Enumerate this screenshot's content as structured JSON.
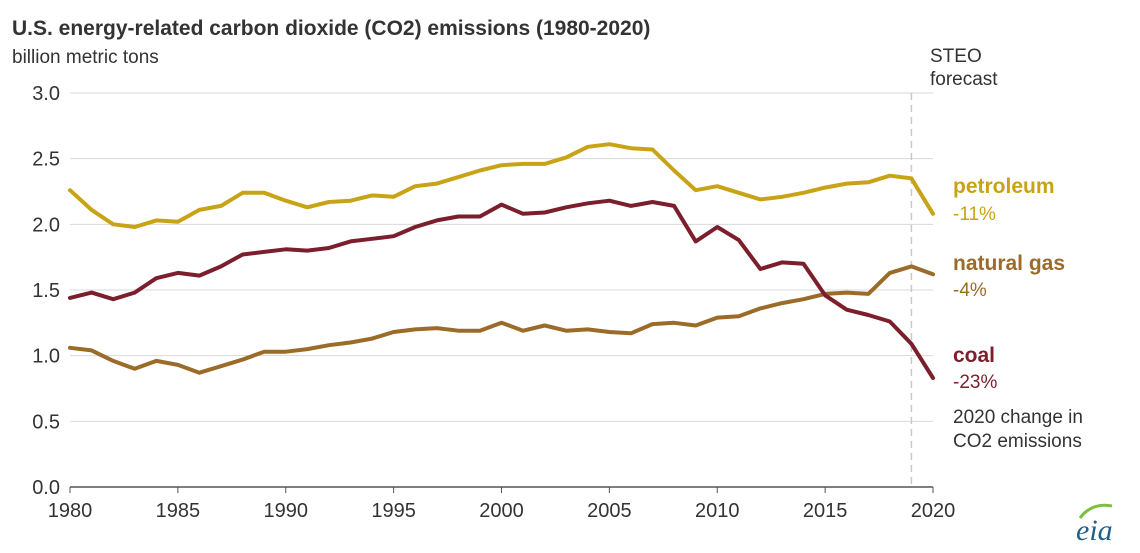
{
  "chart_data": {
    "type": "line",
    "title": "U.S. energy-related carbon dioxide (CO2) emissions (1980-2020)",
    "ylabel": "billion metric tons",
    "xlabel": "",
    "xlim": [
      1980,
      2020
    ],
    "ylim": [
      0,
      3.0
    ],
    "x_ticks": [
      "1980",
      "1985",
      "1990",
      "1995",
      "2000",
      "2005",
      "2010",
      "2015",
      "2020"
    ],
    "y_ticks": [
      "0.0",
      "0.5",
      "1.0",
      "1.5",
      "2.0",
      "2.5",
      "3.0"
    ],
    "grid": "horizontal",
    "forecast_marker": {
      "x": 2019,
      "label_line1": "STEO",
      "label_line2": "forecast"
    },
    "legend_note": {
      "line1": "2020 change in",
      "line2": "CO2 emissions"
    },
    "x": [
      1980,
      1981,
      1982,
      1983,
      1984,
      1985,
      1986,
      1987,
      1988,
      1989,
      1990,
      1991,
      1992,
      1993,
      1994,
      1995,
      1996,
      1997,
      1998,
      1999,
      2000,
      2001,
      2002,
      2003,
      2004,
      2005,
      2006,
      2007,
      2008,
      2009,
      2010,
      2011,
      2012,
      2013,
      2014,
      2015,
      2016,
      2017,
      2018,
      2019,
      2020
    ],
    "series": [
      {
        "name": "petroleum",
        "change": "-11%",
        "color": "#c9a316",
        "values": [
          2.26,
          2.11,
          2.0,
          1.98,
          2.03,
          2.02,
          2.11,
          2.14,
          2.24,
          2.24,
          2.18,
          2.13,
          2.17,
          2.18,
          2.22,
          2.21,
          2.29,
          2.31,
          2.36,
          2.41,
          2.45,
          2.46,
          2.46,
          2.51,
          2.59,
          2.61,
          2.58,
          2.57,
          2.41,
          2.26,
          2.29,
          2.24,
          2.19,
          2.21,
          2.24,
          2.28,
          2.31,
          2.32,
          2.37,
          2.35,
          2.08
        ]
      },
      {
        "name": "natural gas",
        "change": "-4%",
        "color": "#9b6b2a",
        "values": [
          1.06,
          1.04,
          0.96,
          0.9,
          0.96,
          0.93,
          0.87,
          0.92,
          0.97,
          1.03,
          1.03,
          1.05,
          1.08,
          1.1,
          1.13,
          1.18,
          1.2,
          1.21,
          1.19,
          1.19,
          1.25,
          1.19,
          1.23,
          1.19,
          1.2,
          1.18,
          1.17,
          1.24,
          1.25,
          1.23,
          1.29,
          1.3,
          1.36,
          1.4,
          1.43,
          1.47,
          1.48,
          1.47,
          1.63,
          1.68,
          1.62
        ]
      },
      {
        "name": "coal",
        "change": "-23%",
        "color": "#7a1f2b",
        "values": [
          1.44,
          1.48,
          1.43,
          1.48,
          1.59,
          1.63,
          1.61,
          1.68,
          1.77,
          1.79,
          1.81,
          1.8,
          1.82,
          1.87,
          1.89,
          1.91,
          1.98,
          2.03,
          2.06,
          2.06,
          2.15,
          2.08,
          2.09,
          2.13,
          2.16,
          2.18,
          2.14,
          2.17,
          2.14,
          1.87,
          1.98,
          1.88,
          1.66,
          1.71,
          1.7,
          1.46,
          1.35,
          1.31,
          1.26,
          1.09,
          0.83
        ]
      }
    ]
  },
  "logo": {
    "text": "eia"
  }
}
